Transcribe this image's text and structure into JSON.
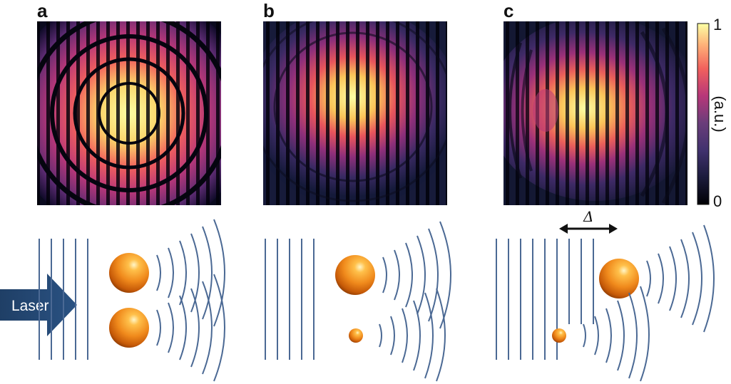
{
  "panels": [
    {
      "label": "a"
    },
    {
      "label": "b"
    },
    {
      "label": "c"
    }
  ],
  "colorbar": {
    "max_label": "1",
    "min_label": "0",
    "unit_label": "(a.u.)"
  },
  "laser": {
    "label": "Laser",
    "color": "#1f3f66"
  },
  "delta_label": "Δ",
  "colors": {
    "wavefront": "#4b6994",
    "particle_light": "#fff3a0",
    "particle_mid": "#f7931e",
    "particle_dark": "#b34700",
    "intensity_low": "#000004",
    "intensity_mid": "#b73779",
    "intensity_high": "#fcffa4"
  }
}
